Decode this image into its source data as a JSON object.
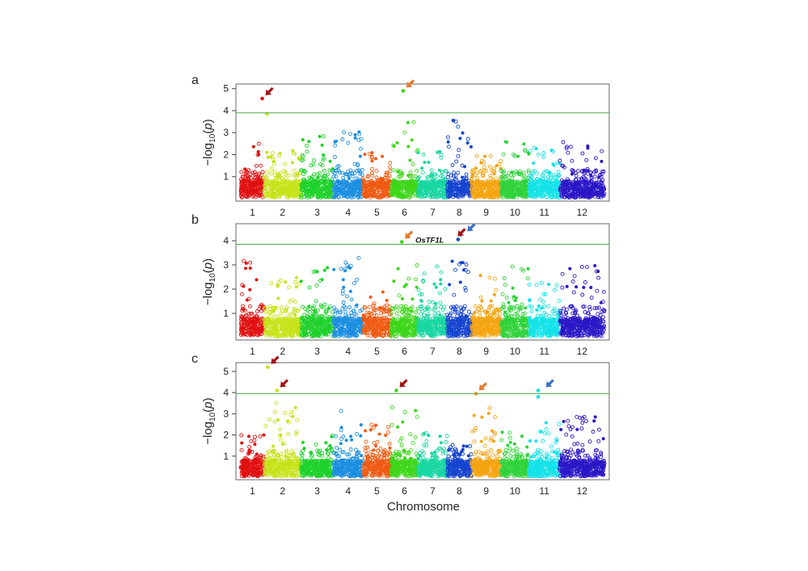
{
  "figure": {
    "xlabel": "Chromosome",
    "ylabel_prefix": "−log",
    "ylabel_sub": "10",
    "ylabel_var": "p"
  },
  "chart_data": [
    {
      "type": "scatter",
      "panel": "a",
      "chromosomes": [
        "1",
        "2",
        "3",
        "4",
        "5",
        "6",
        "7",
        "8",
        "9",
        "10",
        "11",
        "12"
      ],
      "y_ticks": [
        "1",
        "2",
        "3",
        "4",
        "5"
      ],
      "ylim": [
        0,
        5.1
      ],
      "threshold": 3.9,
      "peak_heights": [
        2.6,
        2.2,
        2.9,
        3.1,
        2.1,
        3.5,
        2.2,
        3.6,
        2.0,
        2.6,
        2.4,
        2.6
      ],
      "highlight_points": [
        {
          "chromosome": 1,
          "pos": 0.92,
          "y": 4.55
        },
        {
          "chromosome": 2,
          "pos": 0.08,
          "y": 3.85
        },
        {
          "chromosome": 6,
          "pos": 0.45,
          "y": 4.9
        },
        {
          "chromosome": 8,
          "pos": 0.25,
          "y": 3.55
        }
      ],
      "arrows": [
        {
          "chromosome": 1,
          "pos": 0.92,
          "y": 4.55,
          "color": "#a31515"
        },
        {
          "chromosome": 6,
          "pos": 0.45,
          "y": 4.9,
          "color": "#e8792b"
        }
      ],
      "gene_labels": []
    },
    {
      "type": "scatter",
      "panel": "b",
      "chromosomes": [
        "1",
        "2",
        "3",
        "4",
        "5",
        "6",
        "7",
        "8",
        "9",
        "10",
        "11",
        "12"
      ],
      "y_ticks": [
        "1",
        "2",
        "3",
        "4"
      ],
      "ylim": [
        0,
        4.6
      ],
      "threshold": 3.85,
      "peak_heights": [
        3.2,
        2.6,
        2.9,
        3.5,
        2.0,
        3.0,
        3.0,
        3.2,
        2.6,
        3.0,
        2.3,
        3.0
      ],
      "highlight_points": [
        {
          "chromosome": 6,
          "pos": 0.4,
          "y": 3.95
        },
        {
          "chromosome": 8,
          "pos": 0.45,
          "y": 4.05
        },
        {
          "chromosome": 8,
          "pos": 0.55,
          "y": 4.25
        }
      ],
      "arrows": [
        {
          "chromosome": 6,
          "pos": 0.4,
          "y": 3.95,
          "color": "#e8792b"
        },
        {
          "chromosome": 8,
          "pos": 0.3,
          "y": 4.05,
          "color": "#a31515"
        },
        {
          "chromosome": 8,
          "pos": 0.7,
          "y": 4.25,
          "color": "#3a6fc4"
        }
      ],
      "gene_labels": [
        {
          "text": "OsTF1L",
          "chromosome": 8,
          "pos": -0.8,
          "y": 4.05
        }
      ]
    },
    {
      "type": "scatter",
      "panel": "c",
      "chromosomes": [
        "1",
        "2",
        "3",
        "4",
        "5",
        "6",
        "7",
        "8",
        "9",
        "10",
        "11",
        "12"
      ],
      "y_ticks": [
        "1",
        "2",
        "3",
        "4",
        "5"
      ],
      "ylim": [
        0,
        5.3
      ],
      "threshold": 3.95,
      "peak_heights": [
        2.1,
        3.6,
        2.2,
        3.2,
        2.9,
        3.5,
        2.5,
        1.6,
        3.6,
        2.2,
        2.6,
        2.9
      ],
      "highlight_points": [
        {
          "chromosome": 2,
          "pos": 0.1,
          "y": 5.2
        },
        {
          "chromosome": 2,
          "pos": 0.35,
          "y": 4.1
        },
        {
          "chromosome": 6,
          "pos": 0.2,
          "y": 4.1
        },
        {
          "chromosome": 9,
          "pos": 0.15,
          "y": 3.95
        },
        {
          "chromosome": 11,
          "pos": 0.3,
          "y": 4.1
        },
        {
          "chromosome": 11,
          "pos": 0.3,
          "y": 3.8
        }
      ],
      "arrows": [
        {
          "chromosome": 2,
          "pos": 0.1,
          "y": 5.2,
          "color": "#a31515"
        },
        {
          "chromosome": 2,
          "pos": 0.35,
          "y": 4.1,
          "color": "#a31515"
        },
        {
          "chromosome": 6,
          "pos": 0.2,
          "y": 4.1,
          "color": "#a31515"
        },
        {
          "chromosome": 9,
          "pos": 0.15,
          "y": 3.95,
          "color": "#e8792b"
        },
        {
          "chromosome": 11,
          "pos": 0.45,
          "y": 4.1,
          "color": "#3a6fc4"
        }
      ],
      "gene_labels": []
    }
  ],
  "colors": {
    "chromosomes": [
      "#e01010",
      "#c8e21a",
      "#1fd12b",
      "#1c8ee0",
      "#ef5a12",
      "#3ed61a",
      "#18d6a2",
      "#1544cf",
      "#f5a410",
      "#30d23a",
      "#14e2e8",
      "#2b17c6"
    ],
    "threshold_line": "#4aa84a",
    "frame": "#666666"
  }
}
